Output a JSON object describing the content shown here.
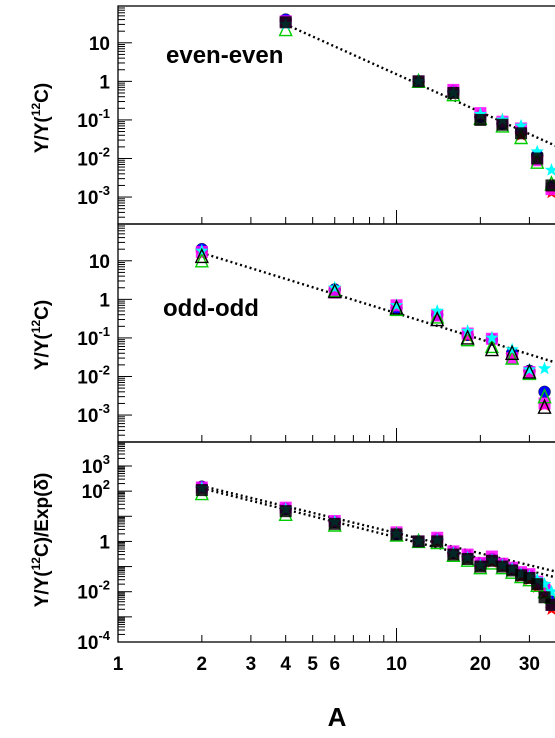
{
  "chart_data": [
    {
      "type": "scatter",
      "panel": "top",
      "annotation": "even-even",
      "ylabel": "Y/Y(",
      "ylabel_sup": "12",
      "ylabel_tail": "C)",
      "xscale": "log",
      "yscale": "log",
      "xlim": [
        1,
        38
      ],
      "ylim": [
        0.0002,
        90
      ],
      "yticks": [
        {
          "value": 10,
          "label": "10",
          "sup": ""
        },
        {
          "value": 1,
          "label": "1",
          "sup": ""
        },
        {
          "value": 0.1,
          "label": "10",
          "sup": "-1"
        },
        {
          "value": 0.01,
          "label": "10",
          "sup": "-2"
        },
        {
          "value": 0.001,
          "label": "10",
          "sup": "-3"
        }
      ],
      "fit_line": {
        "style": "dotted",
        "points": [
          [
            4,
            30
          ],
          [
            38,
            0.02
          ]
        ]
      },
      "series": [
        {
          "name": "",
          "color": "#0000ff",
          "marker": "circle",
          "x": [
            4,
            12,
            16,
            20,
            24,
            28,
            32,
            36
          ],
          "y": [
            40,
            1.0,
            0.55,
            0.12,
            0.08,
            0.05,
            0.012,
            0.0018
          ]
        },
        {
          "name": "",
          "color": "#ff0000",
          "marker": "star",
          "x": [
            4,
            12,
            16,
            20,
            24,
            28,
            32,
            36
          ],
          "y": [
            32,
            1.0,
            0.5,
            0.13,
            0.1,
            0.04,
            0.01,
            0.0013
          ]
        },
        {
          "name": "",
          "color": "#ff00ff",
          "marker": "square",
          "x": [
            4,
            12,
            16,
            20,
            24,
            28,
            32,
            36
          ],
          "y": [
            36,
            1.0,
            0.6,
            0.15,
            0.09,
            0.06,
            0.009,
            0.0016
          ]
        },
        {
          "name": "",
          "color": "#00cc00",
          "marker": "triangle",
          "x": [
            4,
            12,
            16,
            20,
            24,
            28,
            32,
            36
          ],
          "y": [
            22,
            1.0,
            0.45,
            0.11,
            0.07,
            0.035,
            0.008,
            0.0022
          ]
        },
        {
          "name": "",
          "color": "#00ffff",
          "marker": "star",
          "x": [
            4,
            12,
            16,
            20,
            24,
            28,
            32,
            36
          ],
          "y": [
            30,
            1.0,
            0.5,
            0.14,
            0.1,
            0.07,
            0.015,
            0.005
          ]
        },
        {
          "name": "",
          "color": "#000000",
          "marker": "square",
          "x": [
            4,
            12,
            16,
            20,
            24,
            28,
            32,
            36
          ],
          "y": [
            34,
            1.0,
            0.5,
            0.1,
            0.075,
            0.045,
            0.01,
            0.002
          ]
        }
      ]
    },
    {
      "type": "scatter",
      "panel": "middle",
      "annotation": "odd-odd",
      "ylabel": "Y/Y(",
      "ylabel_sup": "12",
      "ylabel_tail": "C)",
      "xscale": "log",
      "yscale": "log",
      "xlim": [
        1,
        38
      ],
      "ylim": [
        0.0002,
        90
      ],
      "yticks": [
        {
          "value": 10,
          "label": "10",
          "sup": ""
        },
        {
          "value": 1,
          "label": "1",
          "sup": ""
        },
        {
          "value": 0.1,
          "label": "10",
          "sup": "-1"
        },
        {
          "value": 0.01,
          "label": "10",
          "sup": "-2"
        },
        {
          "value": 0.001,
          "label": "10",
          "sup": "-3"
        }
      ],
      "fit_line": {
        "style": "dotted",
        "points": [
          [
            2,
            16
          ],
          [
            38,
            0.022
          ]
        ]
      },
      "series": [
        {
          "name": "",
          "color": "#0000ff",
          "marker": "circle",
          "x": [
            2,
            6,
            10,
            14,
            18,
            22,
            26,
            30,
            34
          ],
          "y": [
            20,
            1.8,
            0.6,
            0.4,
            0.12,
            0.09,
            0.04,
            0.014,
            0.004
          ]
        },
        {
          "name": "",
          "color": "#ff0000",
          "marker": "star",
          "x": [
            2,
            6,
            10,
            14,
            18,
            22,
            26,
            30,
            34
          ],
          "y": [
            15,
            1.9,
            0.65,
            0.45,
            0.11,
            0.1,
            0.035,
            0.012,
            0.0018
          ]
        },
        {
          "name": "",
          "color": "#ff00ff",
          "marker": "square",
          "x": [
            2,
            6,
            10,
            14,
            18,
            22,
            26,
            30,
            34
          ],
          "y": [
            17,
            1.5,
            0.7,
            0.38,
            0.13,
            0.095,
            0.03,
            0.013,
            0.002
          ]
        },
        {
          "name": "",
          "color": "#00cc00",
          "marker": "triangle",
          "x": [
            2,
            6,
            10,
            14,
            18,
            22,
            26,
            30,
            34
          ],
          "y": [
            10,
            1.7,
            0.55,
            0.35,
            0.09,
            0.06,
            0.03,
            0.012,
            0.003
          ]
        },
        {
          "name": "",
          "color": "#00ffff",
          "marker": "star",
          "x": [
            2,
            6,
            10,
            14,
            18,
            22,
            26,
            30,
            34
          ],
          "y": [
            18,
            2.0,
            0.7,
            0.5,
            0.15,
            0.1,
            0.05,
            0.015,
            0.016
          ]
        },
        {
          "name": "",
          "color": "#000000",
          "marker": "triangle",
          "x": [
            2,
            6,
            10,
            14,
            18,
            22,
            26,
            30,
            34
          ],
          "y": [
            13,
            1.6,
            0.6,
            0.3,
            0.1,
            0.05,
            0.04,
            0.013,
            0.0016
          ]
        }
      ]
    },
    {
      "type": "scatter",
      "panel": "bottom",
      "ylabel": "Y/Y(",
      "ylabel_sup": "12",
      "ylabel_tail": "C)/Exp(δ)",
      "xlabel": "A",
      "xscale": "log",
      "yscale": "log",
      "xlim": [
        1,
        38
      ],
      "ylim": [
        0.0001,
        9000
      ],
      "yticks": [
        {
          "value": 1000,
          "label": "10",
          "sup": "3"
        },
        {
          "value": 100,
          "label": "10",
          "sup": "2"
        },
        {
          "value": 1,
          "label": "1",
          "sup": ""
        },
        {
          "value": 0.01,
          "label": "10",
          "sup": "-2"
        },
        {
          "value": 0.0001,
          "label": "10",
          "sup": "-4"
        }
      ],
      "xticks": [
        {
          "value": 1,
          "label": "1"
        },
        {
          "value": 2,
          "label": "2"
        },
        {
          "value": 3,
          "label": "3"
        },
        {
          "value": 4,
          "label": "4"
        },
        {
          "value": 5,
          "label": "5"
        },
        {
          "value": 6,
          "label": "6"
        },
        {
          "value": 10,
          "label": "10"
        },
        {
          "value": 20,
          "label": "20"
        },
        {
          "value": 30,
          "label": "30"
        }
      ],
      "fit_lines": [
        {
          "style": "dotted",
          "points": [
            [
              2,
              160
            ],
            [
              38,
              0.06
            ]
          ]
        },
        {
          "style": "dotted",
          "points": [
            [
              2,
              130
            ],
            [
              38,
              0.035
            ]
          ]
        }
      ],
      "series": [
        {
          "name": "",
          "color": "#0000ff",
          "marker": "circle",
          "x": [
            2,
            4,
            6,
            10,
            12,
            14,
            16,
            18,
            20,
            22,
            24,
            26,
            28,
            30,
            32,
            34,
            36
          ],
          "y": [
            150,
            20,
            6,
            2.0,
            1.0,
            1.2,
            0.35,
            0.25,
            0.12,
            0.2,
            0.12,
            0.08,
            0.05,
            0.04,
            0.02,
            0.015,
            0.004
          ]
        },
        {
          "name": "",
          "color": "#ff0000",
          "marker": "star",
          "x": [
            2,
            4,
            6,
            10,
            12,
            14,
            16,
            18,
            20,
            22,
            24,
            26,
            28,
            30,
            32,
            34,
            36
          ],
          "y": [
            120,
            18,
            5.5,
            2.1,
            1.0,
            1.0,
            0.3,
            0.2,
            0.1,
            0.15,
            0.1,
            0.07,
            0.04,
            0.03,
            0.015,
            0.008,
            0.002
          ]
        },
        {
          "name": "",
          "color": "#ff00ff",
          "marker": "square",
          "x": [
            2,
            4,
            6,
            10,
            12,
            14,
            16,
            18,
            20,
            22,
            24,
            26,
            28,
            30,
            32,
            34,
            36
          ],
          "y": [
            140,
            22,
            6.5,
            2.3,
            1.0,
            1.4,
            0.4,
            0.3,
            0.14,
            0.25,
            0.13,
            0.09,
            0.06,
            0.05,
            0.025,
            0.012,
            0.003
          ]
        },
        {
          "name": "",
          "color": "#00cc00",
          "marker": "triangle",
          "x": [
            2,
            4,
            6,
            10,
            12,
            14,
            16,
            18,
            20,
            22,
            24,
            26,
            28,
            30,
            32,
            34,
            36
          ],
          "y": [
            80,
            12,
            4.5,
            1.8,
            1.0,
            0.9,
            0.28,
            0.18,
            0.09,
            0.14,
            0.09,
            0.06,
            0.04,
            0.03,
            0.018,
            0.01,
            0.006
          ]
        },
        {
          "name": "",
          "color": "#00ffff",
          "marker": "star",
          "x": [
            2,
            4,
            6,
            10,
            12,
            14,
            16,
            18,
            20,
            22,
            24,
            26,
            28,
            30,
            32,
            34,
            36
          ],
          "y": [
            130,
            19,
            6,
            2.0,
            1.0,
            1.1,
            0.33,
            0.22,
            0.11,
            0.18,
            0.11,
            0.08,
            0.05,
            0.04,
            0.03,
            0.02,
            0.01
          ]
        },
        {
          "name": "",
          "color": "#000000",
          "marker": "square",
          "x": [
            2,
            4,
            6,
            10,
            12,
            14,
            16,
            18,
            20,
            22,
            24,
            26,
            28,
            30,
            32,
            34,
            36
          ],
          "y": [
            110,
            16,
            5,
            1.9,
            1.0,
            1.0,
            0.3,
            0.2,
            0.1,
            0.17,
            0.1,
            0.07,
            0.045,
            0.035,
            0.02,
            0.006,
            0.003
          ]
        }
      ]
    }
  ]
}
